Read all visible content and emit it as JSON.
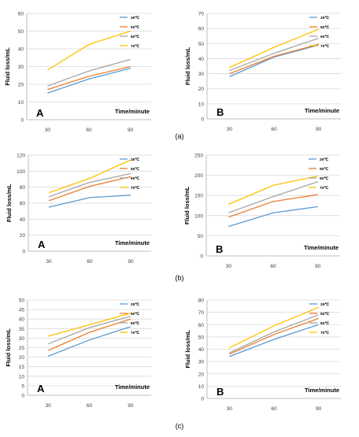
{
  "row_captions": [
    "(a)",
    "(b)",
    "(c)"
  ],
  "chart_data": [
    {
      "type": "line",
      "panel_letter": "A",
      "ylabel": "Fluid loss/mL",
      "xlabel": "Time/minute",
      "x": [
        30,
        60,
        90
      ],
      "ylim": [
        0,
        60
      ],
      "yticks": [
        0,
        10,
        20,
        30,
        40,
        50,
        60
      ],
      "series": [
        {
          "name": "25℃",
          "color": "#5b9bd5",
          "values": [
            15,
            23,
            29
          ]
        },
        {
          "name": "50℃",
          "color": "#ed7d31",
          "values": [
            17,
            24.5,
            30
          ]
        },
        {
          "name": "60℃",
          "color": "#a5a5a5",
          "values": [
            19,
            27.5,
            34
          ]
        },
        {
          "name": "70℃",
          "color": "#ffc000",
          "values": [
            28,
            42.5,
            50
          ]
        }
      ]
    },
    {
      "type": "line",
      "panel_letter": "B",
      "ylabel": "Fluid loss/mL",
      "xlabel": "Time/minute",
      "x": [
        30,
        60,
        90
      ],
      "ylim": [
        0,
        70
      ],
      "yticks": [
        0,
        10,
        20,
        30,
        40,
        50,
        60,
        70
      ],
      "series": [
        {
          "name": "25℃",
          "color": "#5b9bd5",
          "values": [
            28,
            41,
            49
          ]
        },
        {
          "name": "50℃",
          "color": "#ed7d31",
          "values": [
            30,
            41.5,
            49.5
          ]
        },
        {
          "name": "60℃",
          "color": "#a5a5a5",
          "values": [
            32,
            43.5,
            53.5
          ]
        },
        {
          "name": "70℃",
          "color": "#ffc000",
          "values": [
            34,
            47.5,
            59.5
          ]
        }
      ]
    },
    {
      "type": "line",
      "panel_letter": "A",
      "ylabel": "Fluid loss/mL",
      "xlabel": "Time/minute",
      "x": [
        30,
        60,
        90
      ],
      "ylim": [
        0,
        120
      ],
      "yticks": [
        0,
        20,
        40,
        60,
        80,
        100,
        120
      ],
      "series": [
        {
          "name": "25℃",
          "color": "#5b9bd5",
          "values": [
            55,
            67,
            70
          ]
        },
        {
          "name": "50℃",
          "color": "#ed7d31",
          "values": [
            63,
            81,
            93
          ]
        },
        {
          "name": "60℃",
          "color": "#a5a5a5",
          "values": [
            68,
            86,
            97
          ]
        },
        {
          "name": "70℃",
          "color": "#ffc000",
          "values": [
            73,
            91,
            114
          ]
        }
      ]
    },
    {
      "type": "line",
      "panel_letter": "B",
      "ylabel": "Fluid loss/mL",
      "xlabel": "Time/minute",
      "x": [
        30,
        60,
        90
      ],
      "ylim": [
        0,
        250
      ],
      "yticks": [
        0,
        50,
        100,
        150,
        200,
        250
      ],
      "series": [
        {
          "name": "25℃",
          "color": "#5b9bd5",
          "values": [
            73,
            107,
            122
          ]
        },
        {
          "name": "50℃",
          "color": "#ed7d31",
          "values": [
            96,
            135,
            152
          ]
        },
        {
          "name": "60℃",
          "color": "#a5a5a5",
          "values": [
            107,
            147,
            184
          ]
        },
        {
          "name": "70℃",
          "color": "#ffc000",
          "values": [
            128,
            175,
            198
          ]
        }
      ]
    },
    {
      "type": "line",
      "panel_letter": "A",
      "ylabel": "Fluid loss/mL",
      "xlabel": "Time/minute",
      "x": [
        30,
        60,
        90
      ],
      "ylim": [
        0,
        50
      ],
      "yticks": [
        0,
        5,
        10,
        15,
        20,
        25,
        30,
        35,
        40,
        45,
        50
      ],
      "series": [
        {
          "name": "25℃",
          "color": "#5b9bd5",
          "values": [
            20.5,
            29,
            36
          ]
        },
        {
          "name": "50℃",
          "color": "#ed7d31",
          "values": [
            23.5,
            33,
            40
          ]
        },
        {
          "name": "60℃",
          "color": "#a5a5a5",
          "values": [
            27,
            35.5,
            41.5
          ]
        },
        {
          "name": "70℃",
          "color": "#ffc000",
          "values": [
            31,
            37,
            43
          ]
        }
      ]
    },
    {
      "type": "line",
      "panel_letter": "B",
      "ylabel": "Fluid loss/mL",
      "xlabel": "Time/minute",
      "x": [
        30,
        60,
        90
      ],
      "ylim": [
        0,
        80
      ],
      "yticks": [
        0,
        10,
        20,
        30,
        40,
        50,
        60,
        70,
        80
      ],
      "series": [
        {
          "name": "25℃",
          "color": "#5b9bd5",
          "values": [
            34,
            48,
            60
          ]
        },
        {
          "name": "50℃",
          "color": "#ed7d31",
          "values": [
            36,
            52,
            65
          ]
        },
        {
          "name": "60℃",
          "color": "#a5a5a5",
          "values": [
            37,
            54,
            68
          ]
        },
        {
          "name": "70℃",
          "color": "#ffc000",
          "values": [
            41,
            59,
            74
          ]
        }
      ]
    }
  ]
}
